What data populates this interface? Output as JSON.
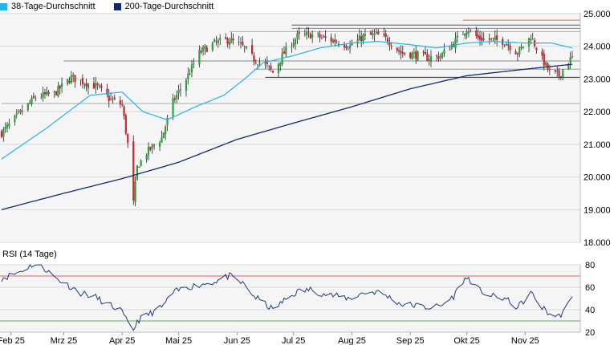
{
  "legend": {
    "items": [
      {
        "label": "38-Tage-Durchschnitt",
        "color": "#22b5e8"
      },
      {
        "label": "200-Tage-Durchschnitt",
        "color": "#0f2a6b"
      }
    ]
  },
  "rsi_panel": {
    "title": "RSI (14 Tage)"
  },
  "colors": {
    "up": "#2e9f3d",
    "down": "#d2232a",
    "wick": "#222222",
    "ma200": "#0f2a6b",
    "ma38": "#22b5e8",
    "rsi": "#203a7a",
    "rsi_upper": "#e06060",
    "rsi_lower": "#5ab55a"
  },
  "chart_data": [
    {
      "type": "candlestick",
      "title": "",
      "xlabel": "",
      "ylabel": "",
      "ylim": [
        18.0,
        25.0
      ],
      "yticks": [
        18.0,
        19.0,
        20.0,
        21.0,
        22.0,
        23.0,
        24.0,
        25.0
      ],
      "ytick_labels": [
        "18.000",
        "19.000",
        "20.000",
        "21.000",
        "22.000",
        "23.000",
        "24.000",
        "25.000"
      ],
      "grid": true,
      "legend_position": "top-left",
      "xticks": [
        {
          "label": "Feb 25",
          "x": "2025-02-01"
        },
        {
          "label": "Mrz 25",
          "x": "2025-03-01"
        },
        {
          "label": "Apr 25",
          "x": "2025-04-01"
        },
        {
          "label": "Mai 25",
          "x": "2025-05-01"
        },
        {
          "label": "Jun 25",
          "x": "2025-06-01"
        },
        {
          "label": "Jul 25",
          "x": "2025-07-01"
        },
        {
          "label": "Aug 25",
          "x": "2025-08-01"
        },
        {
          "label": "Sep 25",
          "x": "2025-09-01"
        },
        {
          "label": "Okt 25",
          "x": "2025-10-01"
        },
        {
          "label": "Nov 25",
          "x": "2025-11-01"
        }
      ],
      "x_range": [
        "2025-01-27",
        "2025-11-26"
      ],
      "close_anchors": [
        [
          "2025-01-27",
          21.35
        ],
        [
          "2025-02-05",
          21.9
        ],
        [
          "2025-02-14",
          22.45
        ],
        [
          "2025-02-24",
          22.55
        ],
        [
          "2025-03-05",
          23.05
        ],
        [
          "2025-03-12",
          22.9
        ],
        [
          "2025-03-19",
          22.75
        ],
        [
          "2025-03-25",
          22.4
        ],
        [
          "2025-04-01",
          22.2
        ],
        [
          "2025-04-04",
          21.0
        ],
        [
          "2025-04-07",
          19.2
        ],
        [
          "2025-04-09",
          20.3
        ],
        [
          "2025-04-14",
          20.75
        ],
        [
          "2025-04-22",
          21.2
        ],
        [
          "2025-04-28",
          22.3
        ],
        [
          "2025-05-05",
          23.0
        ],
        [
          "2025-05-12",
          23.8
        ],
        [
          "2025-05-20",
          24.1
        ],
        [
          "2025-05-28",
          24.2
        ],
        [
          "2025-06-05",
          23.95
        ],
        [
          "2025-06-10",
          23.6
        ],
        [
          "2025-06-16",
          23.45
        ],
        [
          "2025-06-20",
          23.2
        ],
        [
          "2025-06-26",
          23.8
        ],
        [
          "2025-07-03",
          24.3
        ],
        [
          "2025-07-10",
          24.35
        ],
        [
          "2025-07-17",
          24.25
        ],
        [
          "2025-07-24",
          24.15
        ],
        [
          "2025-07-31",
          24.0
        ],
        [
          "2025-08-07",
          24.3
        ],
        [
          "2025-08-14",
          24.35
        ],
        [
          "2025-08-20",
          24.2
        ],
        [
          "2025-08-27",
          23.8
        ],
        [
          "2025-09-03",
          23.75
        ],
        [
          "2025-09-10",
          23.65
        ],
        [
          "2025-09-17",
          23.7
        ],
        [
          "2025-09-24",
          24.1
        ],
        [
          "2025-10-01",
          24.55
        ],
        [
          "2025-10-07",
          24.25
        ],
        [
          "2025-10-14",
          24.2
        ],
        [
          "2025-10-21",
          24.15
        ],
        [
          "2025-10-28",
          23.8
        ],
        [
          "2025-11-04",
          24.3
        ],
        [
          "2025-11-10",
          23.6
        ],
        [
          "2025-11-14",
          23.2
        ],
        [
          "2025-11-19",
          23.1
        ],
        [
          "2025-11-24",
          23.55
        ],
        [
          "2025-11-26",
          23.65
        ]
      ],
      "ma38_anchors": [
        [
          "2025-01-27",
          20.55
        ],
        [
          "2025-02-20",
          21.5
        ],
        [
          "2025-03-15",
          22.5
        ],
        [
          "2025-04-01",
          22.6
        ],
        [
          "2025-04-12",
          22.0
        ],
        [
          "2025-04-25",
          21.75
        ],
        [
          "2025-05-10",
          22.15
        ],
        [
          "2025-05-25",
          22.5
        ],
        [
          "2025-06-05",
          23.0
        ],
        [
          "2025-06-15",
          23.5
        ],
        [
          "2025-06-30",
          23.7
        ],
        [
          "2025-07-15",
          23.95
        ],
        [
          "2025-08-01",
          24.1
        ],
        [
          "2025-08-15",
          24.15
        ],
        [
          "2025-09-01",
          24.05
        ],
        [
          "2025-09-15",
          23.95
        ],
        [
          "2025-10-01",
          24.1
        ],
        [
          "2025-10-15",
          24.15
        ],
        [
          "2025-11-01",
          24.1
        ],
        [
          "2025-11-15",
          24.1
        ],
        [
          "2025-11-26",
          23.95
        ]
      ],
      "ma200_anchors": [
        [
          "2025-01-27",
          19.0
        ],
        [
          "2025-03-01",
          19.5
        ],
        [
          "2025-04-01",
          19.95
        ],
        [
          "2025-05-01",
          20.45
        ],
        [
          "2025-06-01",
          21.15
        ],
        [
          "2025-07-01",
          21.65
        ],
        [
          "2025-08-01",
          22.15
        ],
        [
          "2025-09-01",
          22.7
        ],
        [
          "2025-10-01",
          23.1
        ],
        [
          "2025-11-01",
          23.3
        ],
        [
          "2025-11-26",
          23.45
        ]
      ],
      "horizontal_levels": [
        {
          "value": 24.8,
          "color": "#e06060",
          "from": "2025-09-29",
          "to": "2025-11-26"
        },
        {
          "value": 24.65,
          "color": "#555555",
          "from": "2025-06-30",
          "to": "2025-11-26"
        },
        {
          "value": 24.55,
          "color": "#888888",
          "from": "2025-06-30",
          "to": "2025-11-26"
        },
        {
          "value": 24.45,
          "color": "#aaaaaa",
          "from": "2025-05-28",
          "to": "2025-11-26"
        },
        {
          "value": 23.55,
          "color": "#888888",
          "from": "2025-03-01",
          "to": "2025-11-26"
        },
        {
          "value": 23.3,
          "color": "#999999",
          "from": "2025-06-10",
          "to": "2025-11-26"
        },
        {
          "value": 23.05,
          "color": "#333333",
          "from": "2025-06-16",
          "to": "2025-11-26"
        },
        {
          "value": 22.25,
          "color": "#aaaaaa",
          "from": "2025-01-27",
          "to": "2025-11-26"
        }
      ]
    },
    {
      "type": "line",
      "title": "RSI (14 Tage)",
      "ylim": [
        20,
        80
      ],
      "yticks": [
        20,
        40,
        60,
        80
      ],
      "ytick_labels": [
        "20",
        "40",
        "60",
        "80"
      ],
      "levels": [
        70,
        30
      ],
      "x_range": [
        "2025-01-27",
        "2025-11-26"
      ],
      "series": [
        {
          "values_anchors": [
            [
              "2025-01-27",
              68
            ],
            [
              "2025-02-03",
              72
            ],
            [
              "2025-02-08",
              76
            ],
            [
              "2025-02-12",
              80
            ],
            [
              "2025-02-18",
              78
            ],
            [
              "2025-02-24",
              69
            ],
            [
              "2025-03-03",
              62
            ],
            [
              "2025-03-10",
              55
            ],
            [
              "2025-03-17",
              52
            ],
            [
              "2025-03-24",
              45
            ],
            [
              "2025-03-31",
              40
            ],
            [
              "2025-04-04",
              28
            ],
            [
              "2025-04-07",
              22
            ],
            [
              "2025-04-09",
              30
            ],
            [
              "2025-04-14",
              35
            ],
            [
              "2025-04-22",
              42
            ],
            [
              "2025-04-28",
              55
            ],
            [
              "2025-05-05",
              60
            ],
            [
              "2025-05-12",
              62
            ],
            [
              "2025-05-20",
              65
            ],
            [
              "2025-05-28",
              70
            ],
            [
              "2025-06-05",
              62
            ],
            [
              "2025-06-10",
              52
            ],
            [
              "2025-06-16",
              45
            ],
            [
              "2025-06-20",
              40
            ],
            [
              "2025-06-26",
              48
            ],
            [
              "2025-07-03",
              56
            ],
            [
              "2025-07-10",
              58
            ],
            [
              "2025-07-17",
              54
            ],
            [
              "2025-07-24",
              52
            ],
            [
              "2025-07-31",
              50
            ],
            [
              "2025-08-07",
              55
            ],
            [
              "2025-08-14",
              56
            ],
            [
              "2025-08-20",
              52
            ],
            [
              "2025-08-27",
              45
            ],
            [
              "2025-09-03",
              44
            ],
            [
              "2025-09-10",
              42
            ],
            [
              "2025-09-17",
              43
            ],
            [
              "2025-09-24",
              52
            ],
            [
              "2025-09-29",
              66
            ],
            [
              "2025-10-02",
              68
            ],
            [
              "2025-10-07",
              58
            ],
            [
              "2025-10-14",
              52
            ],
            [
              "2025-10-21",
              50
            ],
            [
              "2025-10-28",
              42
            ],
            [
              "2025-11-04",
              55
            ],
            [
              "2025-11-10",
              42
            ],
            [
              "2025-11-14",
              36
            ],
            [
              "2025-11-19",
              34
            ],
            [
              "2025-11-24",
              45
            ],
            [
              "2025-11-26",
              50
            ]
          ]
        }
      ]
    }
  ]
}
